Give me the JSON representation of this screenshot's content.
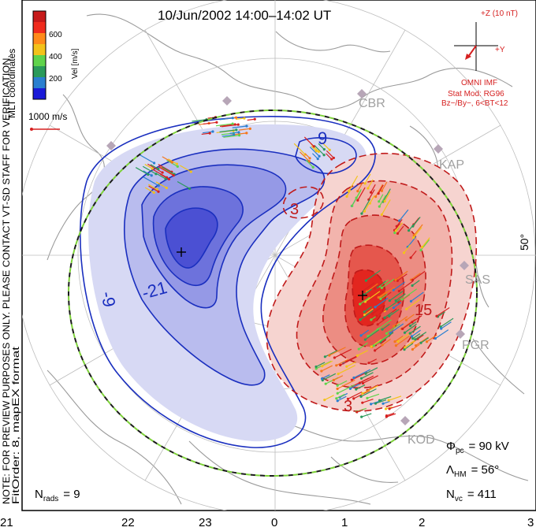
{
  "title": "10/Jun/2002 14:00–14:02 UT",
  "colorbar": {
    "title": "Vel [m/s]",
    "ticks": [
      "600",
      "400",
      "200"
    ],
    "colors": [
      "#c61a1a",
      "#f02b1d",
      "#ff8a1a",
      "#f3c21a",
      "#5fd34b",
      "#2a9a5a",
      "#2a7fd0",
      "#1a1ad8"
    ]
  },
  "scale_vector_label": "1000 m/s",
  "imf_box": {
    "z_label": "+Z (10 nT)",
    "y_label": "+Y",
    "line1": "OMNI IMF",
    "line2": "Stat Mod: RG96",
    "line3": "Bz−/By−, 6<BT<12"
  },
  "side_text_top": "MLT coordinates",
  "side_text_main": "NOTE: FOR PREVIEW PURPOSES ONLY. PLEASE CONTACT VT-SD STAFF FOR VERIFICATION.",
  "side_text_sub": "FitOrder: 8, mapEX format",
  "latitude_label": "50°",
  "stations": [
    "CBR",
    "KAP",
    "SAS",
    "PGR",
    "KOD"
  ],
  "contour_labels": {
    "neg_outer": "-9",
    "neg_inner": "-21",
    "neg_top": "9",
    "pos": [
      "3",
      "15",
      "3"
    ]
  },
  "stats": {
    "phi": "Φpc = 90 kV",
    "phi_sym": "Φ",
    "phi_sub": "pc",
    "phi_val": "= 90 kV",
    "lambda_sym": "Λ",
    "lambda_sub": "HM",
    "lambda_val": "= 56°",
    "nvc_sym": "N",
    "nvc_sub": "vc",
    "nvc_val": "= 411",
    "nrads_sym": "N",
    "nrads_sub": "rads",
    "nrads_val": "= 9"
  },
  "mlt_labels": [
    "21",
    "22",
    "23",
    "0",
    "1",
    "2",
    "3"
  ],
  "colors": {
    "negative_contour": "#1a2fbf",
    "positive_contour": "#c01a1a",
    "hmb_dash_a": "#1a1a1a",
    "hmb_dash_b": "#7ed23a",
    "land": "#9a9a9a"
  }
}
